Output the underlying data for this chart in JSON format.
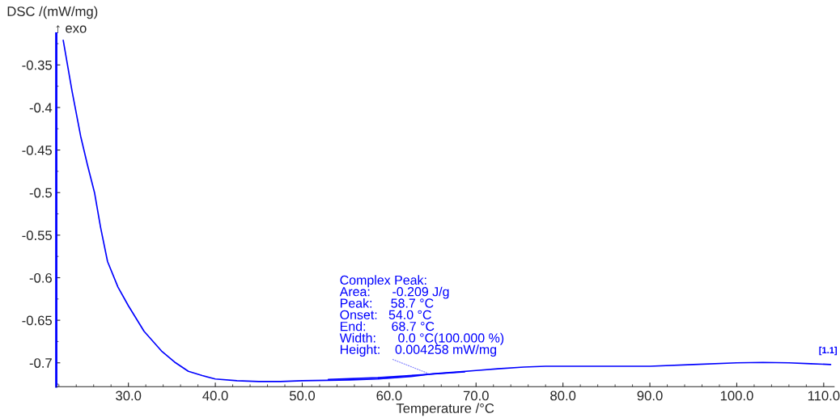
{
  "chart_data": {
    "type": "line",
    "xlabel": "Temperature /°C",
    "ylabel": "DSC /(mW/mg)",
    "x": [
      22.5,
      23.5,
      24.5,
      25.3,
      26.1,
      26.8,
      27.6,
      28.8,
      30.0,
      31.8,
      33.8,
      35.3,
      36.9,
      38.5,
      40.0,
      42.5,
      45.0,
      47.5,
      50.0,
      53.0,
      55.5,
      58.7,
      60.0,
      62.5,
      65.0,
      67.5,
      70.0,
      72.5,
      75.5,
      78.0,
      80.0,
      85.0,
      90.0,
      95.0,
      100.0,
      103.0,
      106.0,
      108.5,
      110.8
    ],
    "series": [
      {
        "color": "#0000ff",
        "values": [
          -0.321,
          -0.38,
          -0.4335,
          -0.468,
          -0.5,
          -0.541,
          -0.581,
          -0.611,
          -0.633,
          -0.663,
          -0.686,
          -0.699,
          -0.71,
          -0.715,
          -0.719,
          -0.721,
          -0.722,
          -0.722,
          -0.721,
          -0.7205,
          -0.72,
          -0.719,
          -0.718,
          -0.716,
          -0.713,
          -0.711,
          -0.709,
          -0.707,
          -0.705,
          -0.704,
          -0.704,
          -0.704,
          -0.704,
          -0.702,
          -0.7,
          -0.6995,
          -0.7,
          -0.701,
          -0.702
        ]
      },
      {
        "type": "line",
        "color": "#0000ff",
        "x": [
          53.0,
          58.7,
          64.5,
          68.7
        ],
        "values": [
          -0.7195,
          -0.7175,
          -0.7135,
          -0.7105
        ]
      }
    ],
    "xlim": [
      21.7,
      111.2
    ],
    "ylim": [
      -0.728,
      -0.313
    ],
    "xticks": [
      {
        "value": 30,
        "label": "30.0"
      },
      {
        "value": 40,
        "label": "40.0"
      },
      {
        "value": 50,
        "label": "50.0"
      },
      {
        "value": 60,
        "label": "60.0"
      },
      {
        "value": 70,
        "label": "70.0"
      },
      {
        "value": 80,
        "label": "80.0"
      },
      {
        "value": 90,
        "label": "90.0"
      },
      {
        "value": 100,
        "label": "100.0"
      },
      {
        "value": 110,
        "label": "110.0"
      }
    ],
    "yticks": [
      {
        "value": -0.35,
        "label": "-0.35"
      },
      {
        "value": -0.4,
        "label": "-0.4"
      },
      {
        "value": -0.45,
        "label": "-0.45"
      },
      {
        "value": -0.5,
        "label": "-0.5"
      },
      {
        "value": -0.55,
        "label": "-0.55"
      },
      {
        "value": -0.6,
        "label": "-0.6"
      },
      {
        "value": -0.65,
        "label": "-0.65"
      },
      {
        "value": -0.7,
        "label": "-0.7"
      }
    ],
    "annotations": [
      "↑ exo",
      {
        "text": "Complex Peak:\nArea:      -0.209 J/g\nPeak:     58.7 °C\nOnset:   54.0 °C\nEnd:       68.7 °C\nWidth:      0.0 °C(100.000 %)\nHeight:    0.004258 mW/mg",
        "x": 64.5,
        "y": -0.7125
      },
      {
        "text": "[1.1]",
        "x": 110.5,
        "y": -0.7015
      }
    ],
    "grid": false,
    "legend": false,
    "marker": "none",
    "line_style": "solid"
  }
}
